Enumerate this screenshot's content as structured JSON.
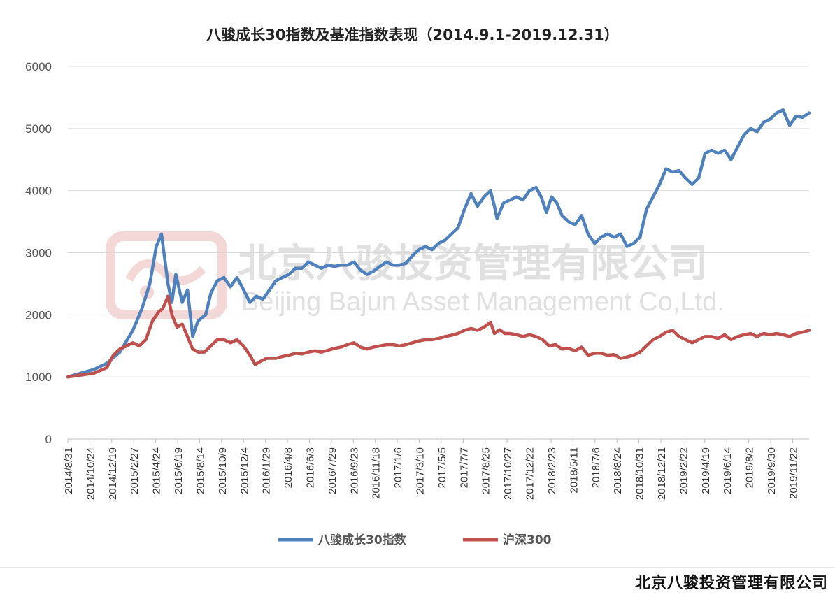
{
  "chart_data": {
    "type": "line",
    "title": "八骏成长30指数及基准指数表现（2014.9.1-2019.12.31）",
    "ylim": [
      0,
      6000
    ],
    "yticks": [
      0,
      1000,
      2000,
      3000,
      4000,
      5000,
      6000
    ],
    "x_tick_labels": [
      "2014/8/31",
      "2014/10/24",
      "2014/12/19",
      "2015/2/27",
      "2015/4/24",
      "2015/6/19",
      "2015/8/14",
      "2015/10/9",
      "2015/12/4",
      "2016/1/29",
      "2016/4/8",
      "2016/6/3",
      "2016/7/29",
      "2016/9/23",
      "2016/11/18",
      "2017/1/6",
      "2017/3/10",
      "2017/5/5",
      "2017/7/7",
      "2017/8/25",
      "2017/10/27",
      "2017/12/22",
      "2018/2/23",
      "2018/5/11",
      "2018/7/6",
      "2018/8/24",
      "2018/10/31",
      "2018/12/21",
      "2019/2/22",
      "2019/4/19",
      "2019/6/14",
      "2019/8/2",
      "2019/9/30",
      "2019/11/22"
    ],
    "grid": true,
    "legend_position": "bottom",
    "series": [
      {
        "name": "八骏成长30指数",
        "color": "#4f81bd",
        "points": [
          [
            0,
            1000
          ],
          [
            1,
            1060
          ],
          [
            2,
            1120
          ],
          [
            3,
            1220
          ],
          [
            4,
            1400
          ],
          [
            5,
            1750
          ],
          [
            5.7,
            2100
          ],
          [
            6.3,
            2500
          ],
          [
            6.8,
            3100
          ],
          [
            7.2,
            3300
          ],
          [
            7.7,
            2500
          ],
          [
            8.0,
            2200
          ],
          [
            8.3,
            2650
          ],
          [
            8.8,
            2200
          ],
          [
            9.2,
            2400
          ],
          [
            9.6,
            1650
          ],
          [
            10.0,
            1900
          ],
          [
            10.6,
            2000
          ],
          [
            11.0,
            2350
          ],
          [
            11.5,
            2550
          ],
          [
            12.0,
            2600
          ],
          [
            12.5,
            2450
          ],
          [
            13.0,
            2600
          ],
          [
            13.4,
            2450
          ],
          [
            14.0,
            2200
          ],
          [
            14.5,
            2300
          ],
          [
            15.0,
            2250
          ],
          [
            15.5,
            2400
          ],
          [
            16.0,
            2550
          ],
          [
            16.5,
            2600
          ],
          [
            17.0,
            2650
          ],
          [
            17.5,
            2750
          ],
          [
            18.0,
            2750
          ],
          [
            18.5,
            2850
          ],
          [
            19.0,
            2800
          ],
          [
            19.5,
            2750
          ],
          [
            20.0,
            2800
          ],
          [
            20.5,
            2780
          ],
          [
            21.0,
            2800
          ],
          [
            21.5,
            2800
          ],
          [
            22.0,
            2850
          ],
          [
            22.5,
            2720
          ],
          [
            23.0,
            2650
          ],
          [
            23.5,
            2700
          ],
          [
            24.0,
            2780
          ],
          [
            24.5,
            2850
          ],
          [
            25.0,
            2800
          ],
          [
            25.5,
            2800
          ],
          [
            26.0,
            2830
          ],
          [
            26.5,
            2950
          ],
          [
            27.0,
            3050
          ],
          [
            27.5,
            3100
          ],
          [
            28.0,
            3050
          ],
          [
            28.5,
            3150
          ],
          [
            29.0,
            3200
          ],
          [
            29.5,
            3300
          ],
          [
            30.0,
            3400
          ],
          [
            30.5,
            3700
          ],
          [
            31.0,
            3950
          ],
          [
            31.5,
            3750
          ],
          [
            32.0,
            3900
          ],
          [
            32.5,
            4000
          ],
          [
            32.8,
            3750
          ],
          [
            33.0,
            3550
          ],
          [
            33.5,
            3800
          ],
          [
            34.0,
            3850
          ],
          [
            34.5,
            3900
          ],
          [
            35.0,
            3850
          ],
          [
            35.5,
            4000
          ],
          [
            36.0,
            4050
          ],
          [
            36.4,
            3900
          ],
          [
            36.8,
            3650
          ],
          [
            37.2,
            3900
          ],
          [
            37.6,
            3800
          ],
          [
            38.0,
            3600
          ],
          [
            38.5,
            3500
          ],
          [
            39.0,
            3450
          ],
          [
            39.5,
            3600
          ],
          [
            40.0,
            3300
          ],
          [
            40.5,
            3150
          ],
          [
            41.0,
            3250
          ],
          [
            41.5,
            3300
          ],
          [
            42.0,
            3250
          ],
          [
            42.5,
            3300
          ],
          [
            43.0,
            3100
          ],
          [
            43.5,
            3150
          ],
          [
            44.0,
            3250
          ],
          [
            44.5,
            3700
          ],
          [
            45.0,
            3900
          ],
          [
            45.5,
            4100
          ],
          [
            46.0,
            4350
          ],
          [
            46.5,
            4300
          ],
          [
            47.0,
            4320
          ],
          [
            47.5,
            4200
          ],
          [
            48.0,
            4100
          ],
          [
            48.5,
            4200
          ],
          [
            49.0,
            4600
          ],
          [
            49.5,
            4650
          ],
          [
            50.0,
            4600
          ],
          [
            50.5,
            4650
          ],
          [
            51.0,
            4500
          ],
          [
            51.5,
            4700
          ],
          [
            52.0,
            4900
          ],
          [
            52.5,
            5000
          ],
          [
            53.0,
            4950
          ],
          [
            53.5,
            5100
          ],
          [
            54.0,
            5150
          ],
          [
            54.5,
            5250
          ],
          [
            55.0,
            5300
          ],
          [
            55.5,
            5050
          ],
          [
            56.0,
            5200
          ],
          [
            56.5,
            5180
          ],
          [
            57.0,
            5250
          ]
        ]
      },
      {
        "name": "沪深300",
        "color": "#c0504d",
        "points": [
          [
            0,
            1000
          ],
          [
            1,
            1030
          ],
          [
            2,
            1060
          ],
          [
            3,
            1150
          ],
          [
            3.5,
            1350
          ],
          [
            4,
            1450
          ],
          [
            4.5,
            1500
          ],
          [
            5,
            1550
          ],
          [
            5.5,
            1500
          ],
          [
            6.0,
            1600
          ],
          [
            6.5,
            1900
          ],
          [
            7.0,
            2050
          ],
          [
            7.3,
            2100
          ],
          [
            7.7,
            2300
          ],
          [
            8.0,
            2000
          ],
          [
            8.4,
            1800
          ],
          [
            8.8,
            1850
          ],
          [
            9.2,
            1650
          ],
          [
            9.6,
            1450
          ],
          [
            10.0,
            1400
          ],
          [
            10.5,
            1400
          ],
          [
            11.0,
            1500
          ],
          [
            11.5,
            1600
          ],
          [
            12.0,
            1600
          ],
          [
            12.5,
            1550
          ],
          [
            13.0,
            1600
          ],
          [
            13.5,
            1500
          ],
          [
            14.0,
            1350
          ],
          [
            14.4,
            1200
          ],
          [
            14.8,
            1250
          ],
          [
            15.3,
            1300
          ],
          [
            16.0,
            1300
          ],
          [
            16.5,
            1330
          ],
          [
            17.0,
            1350
          ],
          [
            17.5,
            1380
          ],
          [
            18.0,
            1370
          ],
          [
            18.5,
            1400
          ],
          [
            19.0,
            1420
          ],
          [
            19.5,
            1400
          ],
          [
            20.0,
            1430
          ],
          [
            20.5,
            1460
          ],
          [
            21.0,
            1480
          ],
          [
            21.5,
            1520
          ],
          [
            22.0,
            1550
          ],
          [
            22.5,
            1480
          ],
          [
            23.0,
            1450
          ],
          [
            23.5,
            1480
          ],
          [
            24.0,
            1500
          ],
          [
            24.5,
            1520
          ],
          [
            25.0,
            1520
          ],
          [
            25.5,
            1500
          ],
          [
            26.0,
            1520
          ],
          [
            26.5,
            1550
          ],
          [
            27.0,
            1580
          ],
          [
            27.5,
            1600
          ],
          [
            28.0,
            1600
          ],
          [
            28.5,
            1620
          ],
          [
            29.0,
            1650
          ],
          [
            29.5,
            1670
          ],
          [
            30.0,
            1700
          ],
          [
            30.5,
            1750
          ],
          [
            31.0,
            1780
          ],
          [
            31.5,
            1750
          ],
          [
            32.0,
            1800
          ],
          [
            32.5,
            1880
          ],
          [
            32.8,
            1700
          ],
          [
            33.2,
            1760
          ],
          [
            33.6,
            1700
          ],
          [
            34.0,
            1700
          ],
          [
            34.5,
            1680
          ],
          [
            35.0,
            1650
          ],
          [
            35.5,
            1680
          ],
          [
            36.0,
            1650
          ],
          [
            36.5,
            1600
          ],
          [
            37.0,
            1500
          ],
          [
            37.5,
            1520
          ],
          [
            38.0,
            1450
          ],
          [
            38.5,
            1460
          ],
          [
            39.0,
            1420
          ],
          [
            39.5,
            1480
          ],
          [
            40.0,
            1350
          ],
          [
            40.5,
            1380
          ],
          [
            41.0,
            1380
          ],
          [
            41.5,
            1350
          ],
          [
            42.0,
            1360
          ],
          [
            42.5,
            1300
          ],
          [
            43.0,
            1320
          ],
          [
            43.5,
            1350
          ],
          [
            44.0,
            1400
          ],
          [
            44.5,
            1500
          ],
          [
            45.0,
            1600
          ],
          [
            45.5,
            1650
          ],
          [
            46.0,
            1720
          ],
          [
            46.5,
            1750
          ],
          [
            47.0,
            1650
          ],
          [
            47.5,
            1600
          ],
          [
            48.0,
            1550
          ],
          [
            48.5,
            1600
          ],
          [
            49.0,
            1650
          ],
          [
            49.5,
            1650
          ],
          [
            50.0,
            1620
          ],
          [
            50.5,
            1680
          ],
          [
            51.0,
            1600
          ],
          [
            51.5,
            1650
          ],
          [
            52.0,
            1680
          ],
          [
            52.5,
            1700
          ],
          [
            53.0,
            1650
          ],
          [
            53.5,
            1700
          ],
          [
            54.0,
            1680
          ],
          [
            54.5,
            1700
          ],
          [
            55.0,
            1680
          ],
          [
            55.5,
            1650
          ],
          [
            56.0,
            1700
          ],
          [
            56.5,
            1720
          ],
          [
            57.0,
            1750
          ]
        ]
      }
    ]
  },
  "watermark": {
    "cn": "北京八骏投资管理有限公司",
    "en": "Beijing Bajun Asset Management Co,Ltd."
  },
  "footer": "北京八骏投资管理有限公司"
}
